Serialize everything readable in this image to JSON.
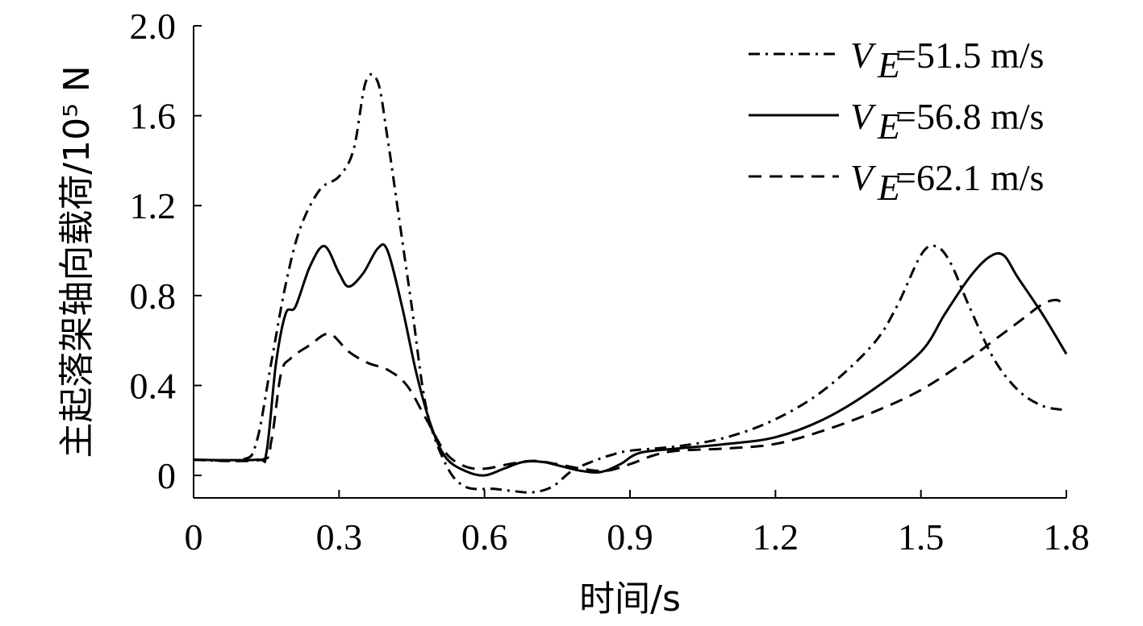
{
  "chart_data": {
    "type": "line",
    "xlabel": "时间/s",
    "ylabel": "主起落架轴向载荷/10⁵ N",
    "xlim": [
      0,
      1.8
    ],
    "ylim": [
      -0.1,
      2.0
    ],
    "x_ticks": [
      0,
      0.3,
      0.6,
      0.9,
      1.2,
      1.5,
      1.8
    ],
    "x_tick_labels": [
      "0",
      "0.3",
      "0.6",
      "0.9",
      "1.2",
      "1.5",
      "1.8"
    ],
    "y_ticks": [
      0,
      0.4,
      0.8,
      1.2,
      1.6,
      2.0
    ],
    "y_tick_labels": [
      "0",
      "0.4",
      "0.8",
      "1.2",
      "1.6",
      "2.0"
    ],
    "grid": false,
    "legend_position": "top-right",
    "series": [
      {
        "name": "V_E=51.5 m/s",
        "legend_label": "=51.5 m/s",
        "line_style": "dash-dot",
        "points": [
          [
            0,
            0.07
          ],
          [
            0.1,
            0.07
          ],
          [
            0.13,
            0.15
          ],
          [
            0.16,
            0.5
          ],
          [
            0.19,
            0.85
          ],
          [
            0.22,
            1.1
          ],
          [
            0.26,
            1.27
          ],
          [
            0.3,
            1.33
          ],
          [
            0.33,
            1.45
          ],
          [
            0.355,
            1.75
          ],
          [
            0.38,
            1.75
          ],
          [
            0.4,
            1.5
          ],
          [
            0.42,
            1.2
          ],
          [
            0.45,
            0.75
          ],
          [
            0.48,
            0.3
          ],
          [
            0.52,
            0.05
          ],
          [
            0.56,
            -0.05
          ],
          [
            0.62,
            -0.06
          ],
          [
            0.66,
            -0.07
          ],
          [
            0.7,
            -0.075
          ],
          [
            0.74,
            -0.05
          ],
          [
            0.78,
            0.02
          ],
          [
            0.82,
            0.06
          ],
          [
            0.86,
            0.09
          ],
          [
            0.9,
            0.11
          ],
          [
            1.0,
            0.13
          ],
          [
            1.1,
            0.17
          ],
          [
            1.2,
            0.25
          ],
          [
            1.3,
            0.38
          ],
          [
            1.4,
            0.58
          ],
          [
            1.45,
            0.75
          ],
          [
            1.5,
            0.98
          ],
          [
            1.53,
            1.02
          ],
          [
            1.56,
            0.95
          ],
          [
            1.6,
            0.75
          ],
          [
            1.65,
            0.52
          ],
          [
            1.7,
            0.38
          ],
          [
            1.75,
            0.31
          ],
          [
            1.8,
            0.29
          ]
        ]
      },
      {
        "name": "V_E=56.8 m/s",
        "legend_label": "=56.8 m/s",
        "line_style": "solid",
        "points": [
          [
            0,
            0.07
          ],
          [
            0.13,
            0.07
          ],
          [
            0.15,
            0.1
          ],
          [
            0.17,
            0.5
          ],
          [
            0.19,
            0.72
          ],
          [
            0.21,
            0.75
          ],
          [
            0.24,
            0.93
          ],
          [
            0.27,
            1.02
          ],
          [
            0.3,
            0.9
          ],
          [
            0.32,
            0.84
          ],
          [
            0.35,
            0.9
          ],
          [
            0.38,
            1.01
          ],
          [
            0.4,
            1.0
          ],
          [
            0.43,
            0.75
          ],
          [
            0.46,
            0.45
          ],
          [
            0.49,
            0.22
          ],
          [
            0.52,
            0.08
          ],
          [
            0.56,
            0.02
          ],
          [
            0.6,
            0.0
          ],
          [
            0.64,
            0.03
          ],
          [
            0.68,
            0.06
          ],
          [
            0.72,
            0.06
          ],
          [
            0.76,
            0.04
          ],
          [
            0.8,
            0.02
          ],
          [
            0.84,
            0.015
          ],
          [
            0.88,
            0.05
          ],
          [
            0.92,
            0.1
          ],
          [
            1.0,
            0.12
          ],
          [
            1.1,
            0.14
          ],
          [
            1.2,
            0.17
          ],
          [
            1.3,
            0.25
          ],
          [
            1.4,
            0.38
          ],
          [
            1.5,
            0.55
          ],
          [
            1.55,
            0.72
          ],
          [
            1.6,
            0.88
          ],
          [
            1.64,
            0.97
          ],
          [
            1.67,
            0.98
          ],
          [
            1.7,
            0.88
          ],
          [
            1.75,
            0.72
          ],
          [
            1.8,
            0.54
          ]
        ]
      },
      {
        "name": "V_E=62.1 m/s",
        "legend_label": "=62.1 m/s",
        "line_style": "dashed",
        "points": [
          [
            0,
            0.07
          ],
          [
            0.14,
            0.07
          ],
          [
            0.16,
            0.15
          ],
          [
            0.18,
            0.45
          ],
          [
            0.2,
            0.52
          ],
          [
            0.24,
            0.58
          ],
          [
            0.28,
            0.63
          ],
          [
            0.32,
            0.55
          ],
          [
            0.36,
            0.5
          ],
          [
            0.4,
            0.47
          ],
          [
            0.44,
            0.4
          ],
          [
            0.48,
            0.25
          ],
          [
            0.52,
            0.1
          ],
          [
            0.56,
            0.04
          ],
          [
            0.6,
            0.03
          ],
          [
            0.65,
            0.05
          ],
          [
            0.7,
            0.065
          ],
          [
            0.75,
            0.05
          ],
          [
            0.8,
            0.03
          ],
          [
            0.85,
            0.02
          ],
          [
            0.9,
            0.05
          ],
          [
            0.95,
            0.09
          ],
          [
            1.0,
            0.11
          ],
          [
            1.1,
            0.12
          ],
          [
            1.2,
            0.14
          ],
          [
            1.3,
            0.2
          ],
          [
            1.4,
            0.28
          ],
          [
            1.5,
            0.38
          ],
          [
            1.6,
            0.52
          ],
          [
            1.65,
            0.6
          ],
          [
            1.7,
            0.68
          ],
          [
            1.75,
            0.76
          ],
          [
            1.78,
            0.78
          ],
          [
            1.8,
            0.75
          ]
        ]
      }
    ]
  }
}
